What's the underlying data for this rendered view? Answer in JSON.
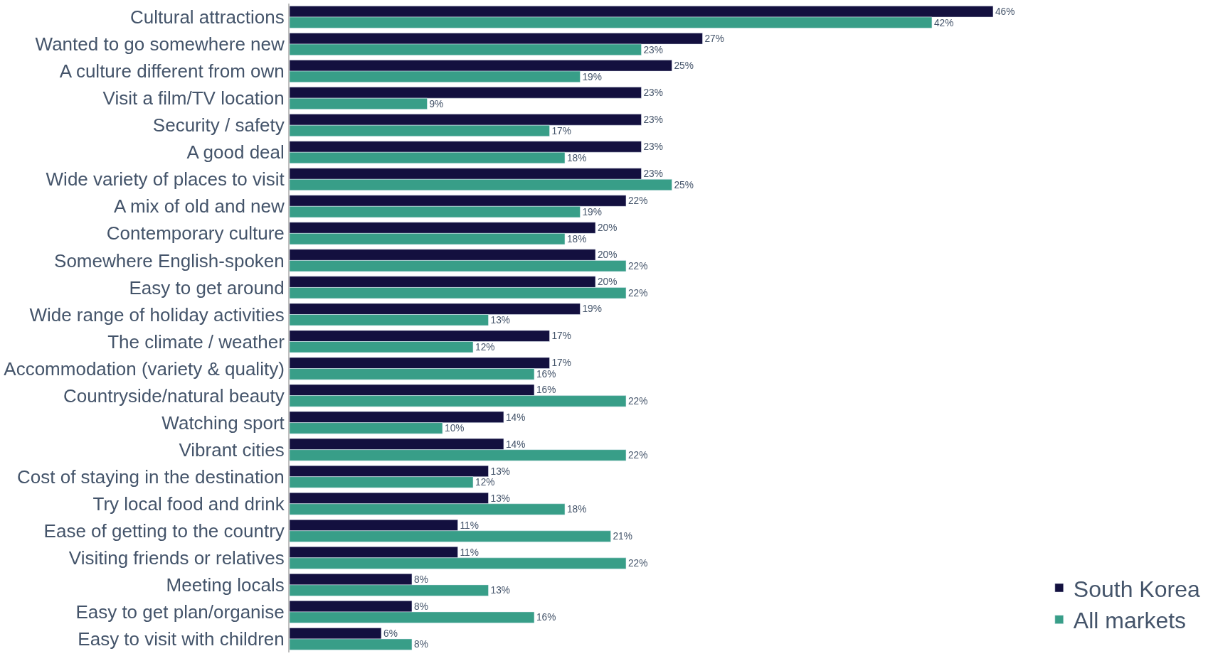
{
  "chart_data": {
    "type": "bar",
    "orientation": "horizontal",
    "legend": "bottom right",
    "categories": [
      "Cultural attractions",
      "Wanted to go somewhere new",
      "A culture different from own",
      "Visit a film/TV location",
      "Security / safety",
      "A good deal",
      "Wide variety of places to visit",
      "A mix of old and new",
      "Contemporary culture",
      "Somewhere English-spoken",
      "Easy to get around",
      "Wide range of holiday activities",
      "The climate / weather",
      "Accommodation (variety & quality)",
      "Countryside/natural beauty",
      "Watching sport",
      "Vibrant cities",
      "Cost of staying in the destination",
      "Try local food and drink",
      "Ease of getting to the country",
      "Visiting friends or relatives",
      "Meeting locals",
      "Easy to get plan/organise",
      "Easy to visit with children"
    ],
    "series": [
      {
        "name": "South Korea",
        "color": "#13103f",
        "values": [
          46,
          27,
          25,
          23,
          23,
          23,
          23,
          22,
          20,
          20,
          20,
          19,
          17,
          17,
          16,
          14,
          14,
          13,
          13,
          11,
          11,
          8,
          8,
          6
        ],
        "value_labels": [
          "46%",
          "27%",
          "25%",
          "23%",
          "23%",
          "23%",
          "23%",
          "22%",
          "20%",
          "20%",
          "20%",
          "19%",
          "17%",
          "17%",
          "16%",
          "14%",
          "14%",
          "13%",
          "13%",
          "11%",
          "11%",
          "8%",
          "8%",
          "6%"
        ]
      },
      {
        "name": "All markets",
        "color": "#389e88",
        "values": [
          42,
          23,
          19,
          9,
          17,
          18,
          25,
          19,
          18,
          22,
          22,
          13,
          12,
          16,
          22,
          10,
          22,
          12,
          18,
          21,
          22,
          13,
          16,
          8
        ],
        "value_labels": [
          "42%",
          "23%",
          "19%",
          "9%",
          "17%",
          "18%",
          "25%",
          "19%",
          "18%",
          "22%",
          "22%",
          "13%",
          "12%",
          "16%",
          "22%",
          "10%",
          "22%",
          "12%",
          "18%",
          "21%",
          "22%",
          "13%",
          "16%",
          "8%"
        ]
      }
    ]
  }
}
